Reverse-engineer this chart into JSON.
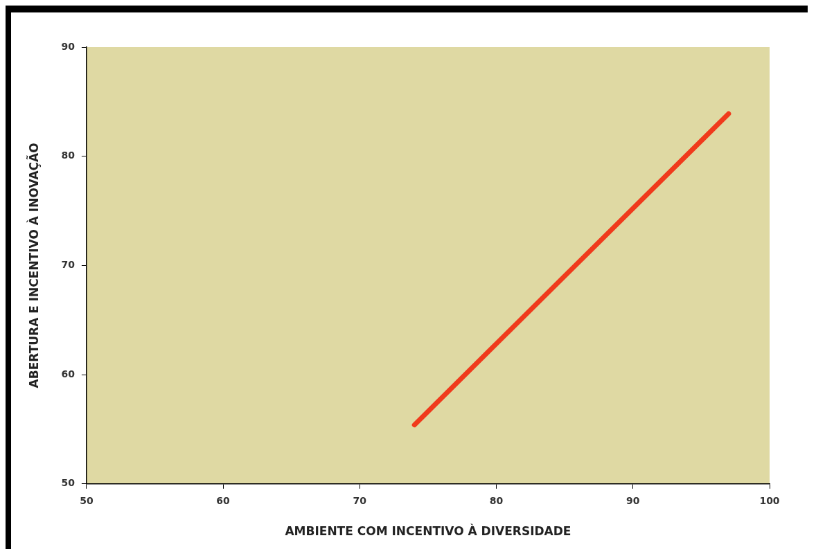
{
  "chart_data": {
    "type": "line",
    "xlabel": "AMBIENTE COM INCENTIVO À DIVERSIDADE",
    "ylabel": "ABERTURA E INCENTIVO À INOVAÇÃO",
    "series": [
      {
        "color": "#f03a1c",
        "x": [
          74,
          97
        ],
        "values": [
          55.4,
          83.9
        ]
      }
    ],
    "xlim": [
      50,
      100
    ],
    "xticks": [
      50,
      60,
      70,
      80,
      90,
      100
    ],
    "ylim": [
      50,
      90
    ],
    "yticks": [
      50,
      60,
      70,
      80,
      90
    ],
    "grid": false,
    "legend": false,
    "marker": "none",
    "line_style": "solid"
  }
}
